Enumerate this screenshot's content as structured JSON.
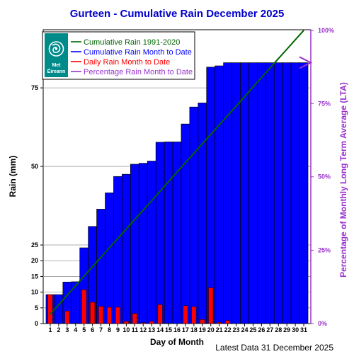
{
  "chart_data": {
    "type": "bar",
    "title": "Gurteen - Cumulative Rain December   2025",
    "xlabel": "Day of Month",
    "ylabel": "Rain (mm)",
    "y2label": "Percentage of Monthly Long Term Average (LTA)",
    "footer": "Latest Data 31 December 2025",
    "logo_text": [
      "Met",
      "Éireann"
    ],
    "ylim": [
      0,
      93.5
    ],
    "y_ticks": [
      0,
      5,
      10,
      15,
      20,
      25,
      50,
      75
    ],
    "y_tick_labels": [
      "0",
      "5",
      "10",
      "15",
      "20",
      "25",
      "50",
      "75"
    ],
    "y2_ticks": [
      {
        "label": "0%",
        "value": 0
      },
      {
        "label": "25%",
        "value": 23.3
      },
      {
        "label": "50%",
        "value": 46.7
      },
      {
        "label": "75%",
        "value": 70.0
      },
      {
        "label": "100%",
        "value": 93.3
      }
    ],
    "categories": [
      "1",
      "2",
      "3",
      "4",
      "5",
      "6",
      "7",
      "8",
      "9",
      "10",
      "11",
      "12",
      "13",
      "14",
      "15",
      "16",
      "17",
      "18",
      "19",
      "20",
      "21",
      "22",
      "23",
      "24",
      "25",
      "26",
      "27",
      "28",
      "29",
      "30",
      "31"
    ],
    "series": [
      {
        "name": "Cumulative Rain Month to Date",
        "kind": "bar",
        "color": "#0000ff",
        "values": [
          9.2,
          9.2,
          13.2,
          13.3,
          24.1,
          30.9,
          36.4,
          41.6,
          46.8,
          47.5,
          50.7,
          51.0,
          51.7,
          57.7,
          57.8,
          57.8,
          63.5,
          68.9,
          70.2,
          81.6,
          82.0,
          83.0,
          83.0,
          83.0,
          83.0,
          83.0,
          83.0,
          83.0,
          83.0,
          83.0,
          83.0
        ]
      },
      {
        "name": "Daily Rain Month to Date",
        "kind": "bar",
        "color": "#ff0000",
        "values": [
          9.2,
          0.0,
          4.0,
          0.1,
          10.8,
          6.8,
          5.5,
          5.2,
          5.2,
          0.7,
          3.2,
          0.3,
          0.7,
          6.0,
          0.1,
          0.0,
          5.7,
          5.4,
          1.3,
          11.4,
          0.4,
          1.0,
          0.0,
          0.0,
          0.0,
          0.0,
          0.0,
          0.0,
          0.0,
          0.0,
          0.0
        ]
      },
      {
        "name": "Cumulative Rain 1991-2020",
        "kind": "line",
        "color": "#006400",
        "values": [
          3.0,
          6.0,
          9.0,
          12.0,
          15.1,
          18.1,
          21.1,
          24.1,
          27.1,
          30.1,
          33.1,
          36.1,
          39.1,
          42.1,
          45.2,
          48.2,
          51.2,
          54.2,
          57.2,
          60.2,
          63.2,
          66.2,
          69.2,
          72.2,
          75.3,
          78.3,
          81.3,
          84.3,
          87.3,
          90.3,
          93.3
        ]
      },
      {
        "name": "Percentage Rain Month to Date",
        "kind": "marker",
        "color": "#9932cc",
        "value": 89
      }
    ],
    "legend_position": "top-left"
  },
  "colors": {
    "title": "#0000cc",
    "right_axis": "#9932cc",
    "logo_bg": "#008b8b"
  }
}
